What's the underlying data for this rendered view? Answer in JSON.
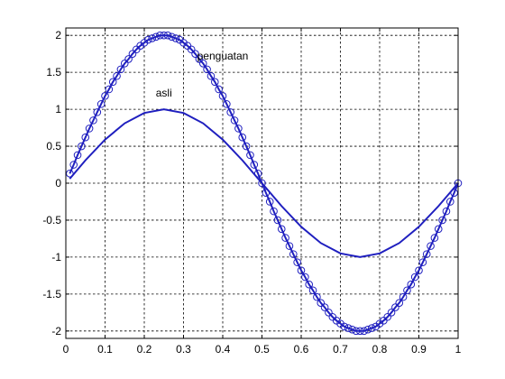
{
  "chart_data": {
    "type": "line",
    "title": "",
    "xlabel": "",
    "ylabel": "",
    "xlim": [
      0,
      1
    ],
    "ylim": [
      -2.1,
      2.1
    ],
    "xticks": [
      0,
      0.1,
      0.2,
      0.3,
      0.4,
      0.5,
      0.6,
      0.7,
      0.8,
      0.9,
      1
    ],
    "xtick_labels": [
      "0",
      "0.1",
      "0.2",
      "0.3",
      "0.4",
      "0.5",
      "0.6",
      "0.7",
      "0.8",
      "0.9",
      "1"
    ],
    "yticks": [
      -2,
      -1.5,
      -1,
      -0.5,
      0,
      0.5,
      1,
      1.5,
      2
    ],
    "ytick_labels": [
      "-2",
      "-1.5",
      "-1",
      "-0.5",
      "0",
      "0.5",
      "1",
      "1.5",
      "2"
    ],
    "grid": true,
    "line_color": "#1f1fbf",
    "series": [
      {
        "marker": "none",
        "x": [
          0.01,
          0.05,
          0.1,
          0.15,
          0.2,
          0.25,
          0.3,
          0.35,
          0.4,
          0.45,
          0.5,
          0.55,
          0.6,
          0.65,
          0.7,
          0.75,
          0.8,
          0.85,
          0.9,
          0.95,
          1
        ],
        "y": [
          0.06,
          0.31,
          0.59,
          0.81,
          0.95,
          1,
          0.95,
          0.81,
          0.59,
          0.31,
          0,
          -0.31,
          -0.59,
          -0.81,
          -0.95,
          -1,
          -0.95,
          -0.81,
          -0.59,
          -0.31,
          0
        ]
      },
      {
        "marker": "circle",
        "x": [
          0.01,
          0.02,
          0.03,
          0.04,
          0.05,
          0.06,
          0.07,
          0.08,
          0.09,
          0.1,
          0.11,
          0.12,
          0.13,
          0.14,
          0.15,
          0.16,
          0.17,
          0.18,
          0.19,
          0.2,
          0.21,
          0.22,
          0.23,
          0.24,
          0.25,
          0.26,
          0.27,
          0.28,
          0.29,
          0.3,
          0.31,
          0.32,
          0.33,
          0.34,
          0.35,
          0.36,
          0.37,
          0.38,
          0.39,
          0.4,
          0.41,
          0.42,
          0.43,
          0.44,
          0.45,
          0.46,
          0.47,
          0.48,
          0.49,
          0.5,
          0.51,
          0.52,
          0.53,
          0.54,
          0.55,
          0.56,
          0.57,
          0.58,
          0.59,
          0.6,
          0.61,
          0.62,
          0.63,
          0.64,
          0.65,
          0.66,
          0.67,
          0.68,
          0.69,
          0.7,
          0.71,
          0.72,
          0.73,
          0.74,
          0.75,
          0.76,
          0.77,
          0.78,
          0.79,
          0.8,
          0.81,
          0.82,
          0.83,
          0.84,
          0.85,
          0.86,
          0.87,
          0.88,
          0.89,
          0.9,
          0.91,
          0.92,
          0.93,
          0.94,
          0.95,
          0.96,
          0.97,
          0.98,
          0.99,
          1
        ],
        "y": [
          0.13,
          0.25,
          0.38,
          0.5,
          0.62,
          0.74,
          0.85,
          0.96,
          1.07,
          1.18,
          1.27,
          1.37,
          1.45,
          1.54,
          1.62,
          1.68,
          1.75,
          1.81,
          1.86,
          1.9,
          1.94,
          1.96,
          1.98,
          2,
          2,
          2,
          1.98,
          1.96,
          1.94,
          1.9,
          1.86,
          1.81,
          1.75,
          1.68,
          1.62,
          1.54,
          1.45,
          1.37,
          1.27,
          1.18,
          1.07,
          0.96,
          0.85,
          0.74,
          0.62,
          0.5,
          0.38,
          0.25,
          0.13,
          0,
          -0.13,
          -0.25,
          -0.38,
          -0.5,
          -0.62,
          -0.74,
          -0.85,
          -0.96,
          -1.07,
          -1.18,
          -1.27,
          -1.37,
          -1.45,
          -1.54,
          -1.62,
          -1.68,
          -1.75,
          -1.81,
          -1.86,
          -1.9,
          -1.94,
          -1.96,
          -1.98,
          -2,
          -2,
          -2,
          -1.98,
          -1.96,
          -1.94,
          -1.9,
          -1.86,
          -1.81,
          -1.75,
          -1.68,
          -1.62,
          -1.54,
          -1.45,
          -1.37,
          -1.27,
          -1.18,
          -1.07,
          -0.96,
          -0.85,
          -0.74,
          -0.62,
          -0.5,
          -0.38,
          -0.25,
          -0.13,
          0
        ]
      }
    ],
    "annotations": [
      {
        "text": "asli",
        "x": 0.25,
        "y": 1.17
      },
      {
        "text": "penguatan",
        "x": 0.4,
        "y": 1.67
      }
    ]
  }
}
